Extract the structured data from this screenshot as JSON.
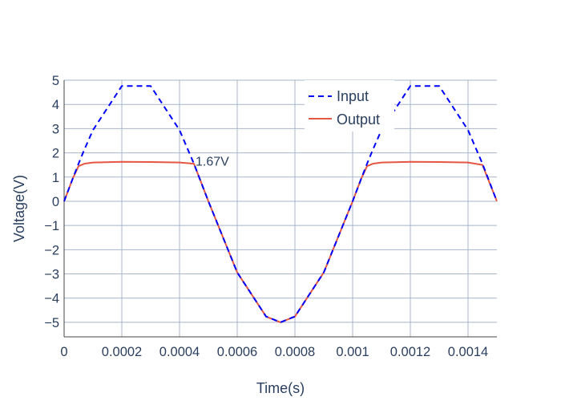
{
  "chart_data": {
    "type": "line",
    "title": "",
    "xlabel": "Time(s)",
    "ylabel": "Voltage(V)",
    "xlim": [
      0,
      0.0015
    ],
    "ylim": [
      -5.6,
      5
    ],
    "x_ticks": [
      0,
      0.0002,
      0.0004,
      0.0006,
      0.0008,
      0.001,
      0.0012,
      0.0014
    ],
    "x_tick_labels": [
      "0",
      "0.0002",
      "0.0004",
      "0.0006",
      "0.0008",
      "0.001",
      "0.0012",
      "0.0014"
    ],
    "y_ticks": [
      5,
      4,
      3,
      2,
      1,
      0,
      -1,
      -2,
      -3,
      -4,
      -5
    ],
    "y_tick_labels": [
      "5",
      "4",
      "3",
      "2",
      "1",
      "0",
      "−1",
      "−2",
      "−3",
      "−4",
      "−5"
    ],
    "grid": true,
    "legend_position": "top-right",
    "x": [
      0,
      3e-05,
      5e-05,
      7e-05,
      0.0001,
      0.0002,
      0.0003,
      0.0004,
      0.00045,
      0.0005,
      0.0006,
      0.0007,
      0.00075,
      0.0008,
      0.0009,
      0.001,
      0.00103,
      0.00105,
      0.00107,
      0.0011,
      0.0012,
      0.0013,
      0.0014,
      0.00145,
      0.0015
    ],
    "series": [
      {
        "name": "Input",
        "color": "#0000ff",
        "dash": "dash",
        "values": [
          0,
          0.94,
          1.55,
          2.13,
          2.94,
          4.76,
          4.76,
          2.94,
          1.55,
          0,
          -2.94,
          -4.76,
          -5,
          -4.76,
          -2.94,
          0,
          0.94,
          1.55,
          2.13,
          2.94,
          4.76,
          4.76,
          2.94,
          1.55,
          0
        ]
      },
      {
        "name": "Output",
        "color": "#e45743",
        "dash": "solid",
        "values": [
          0,
          0.94,
          1.45,
          1.55,
          1.6,
          1.63,
          1.62,
          1.6,
          1.55,
          0,
          -2.94,
          -4.76,
          -5,
          -4.76,
          -2.94,
          0,
          0.94,
          1.45,
          1.55,
          1.6,
          1.63,
          1.62,
          1.6,
          1.5,
          0
        ]
      }
    ],
    "annotations": [
      {
        "text": "1.67V",
        "x": 0.00045,
        "y": 1.67
      }
    ]
  }
}
